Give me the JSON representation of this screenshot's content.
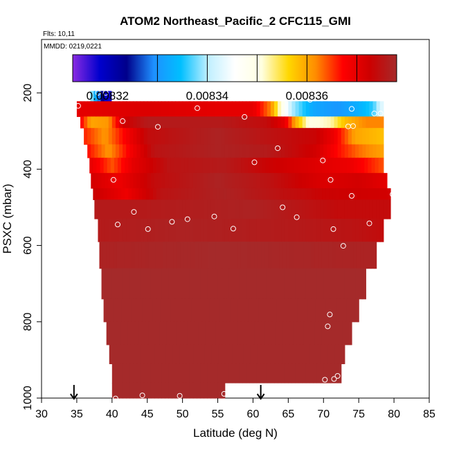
{
  "chart_data": {
    "type": "heatmap",
    "title": "ATOM2 Northeast_Pacific_2 CFC115_GMI",
    "flights_note": "Flts: 10,11",
    "mmdd_note": "MMDD: 0219,0221",
    "xlabel": "Latitude (deg N)",
    "ylabel": "PSXC (mbar)",
    "xlim": [
      30,
      85
    ],
    "ylim": [
      1000,
      60
    ],
    "x_ticks": [
      30,
      35,
      40,
      45,
      50,
      55,
      60,
      65,
      70,
      75,
      80,
      85
    ],
    "y_ticks": [
      200,
      400,
      600,
      800,
      1000
    ],
    "colorbar": {
      "range": [
        0.008313,
        0.008378
      ],
      "tick_values": [
        0.00832,
        0.00834,
        0.00836
      ],
      "tick_labels": [
        "0.00832",
        "0.00834",
        "0.00836"
      ],
      "boundaries": [
        0.00833,
        0.00834,
        0.00835,
        0.00836,
        0.00837
      ],
      "colors": [
        "#8a2be2",
        "#0000cd",
        "#00008b",
        "#1e90ff",
        "#00bfff",
        "#bfefff",
        "#ffffff",
        "#ffffe0",
        "#ffd700",
        "#ff8c00",
        "#ff0000",
        "#cd0000",
        "#a52a2a"
      ]
    },
    "rows": [
      {
        "p0": 195,
        "p1": 222,
        "pts": [
          [
            36.4,
            0.00835
          ],
          [
            37.0,
            0.00834
          ],
          [
            37.6,
            0.008333
          ],
          [
            38.4,
            0.008326
          ],
          [
            39.2,
            0.008318
          ],
          [
            39.9,
            0.008318
          ]
        ]
      },
      {
        "p0": 222,
        "p1": 262,
        "pts": [
          [
            35.0,
            0.00837
          ],
          [
            45.0,
            0.008371
          ],
          [
            55.0,
            0.00837
          ],
          [
            60.0,
            0.00837
          ],
          [
            62.5,
            0.008362
          ],
          [
            64.0,
            0.00835
          ],
          [
            65.5,
            0.00834
          ],
          [
            67.0,
            0.008336
          ],
          [
            68.5,
            0.008332
          ],
          [
            72.0,
            0.00833
          ],
          [
            75.0,
            0.008333
          ],
          [
            77.0,
            0.008336
          ],
          [
            78.5,
            0.008344
          ]
        ]
      },
      {
        "p0": 262,
        "p1": 292,
        "pts": [
          [
            35.5,
            0.008368
          ],
          [
            37.0,
            0.00836
          ],
          [
            39.5,
            0.008361
          ],
          [
            41.5,
            0.008372
          ],
          [
            45.0,
            0.008376
          ],
          [
            55.0,
            0.008376
          ],
          [
            62.0,
            0.008374
          ],
          [
            64.5,
            0.00837
          ],
          [
            66.0,
            0.00836
          ],
          [
            68.0,
            0.00835
          ],
          [
            71.0,
            0.008352
          ],
          [
            73.0,
            0.008358
          ],
          [
            76.0,
            0.008362
          ],
          [
            78.5,
            0.008362
          ]
        ]
      },
      {
        "p0": 292,
        "p1": 335,
        "pts": [
          [
            36.0,
            0.008366
          ],
          [
            39.0,
            0.008361
          ],
          [
            42.0,
            0.008368
          ],
          [
            45.0,
            0.008374
          ],
          [
            55.0,
            0.008377
          ],
          [
            62.0,
            0.008375
          ],
          [
            69.0,
            0.008373
          ],
          [
            71.5,
            0.008369
          ],
          [
            74.5,
            0.00836
          ],
          [
            78.5,
            0.008358
          ]
        ]
      },
      {
        "p0": 335,
        "p1": 370,
        "pts": [
          [
            36.5,
            0.008367
          ],
          [
            39.5,
            0.008361
          ],
          [
            43.0,
            0.008369
          ],
          [
            46.0,
            0.008375
          ],
          [
            55.0,
            0.008377
          ],
          [
            62.0,
            0.008376
          ],
          [
            69.0,
            0.008372
          ],
          [
            72.0,
            0.008367
          ],
          [
            75.0,
            0.008363
          ],
          [
            78.5,
            0.00836
          ]
        ]
      },
      {
        "p0": 370,
        "p1": 410,
        "pts": [
          [
            36.8,
            0.00837
          ],
          [
            40.0,
            0.008364
          ],
          [
            43.0,
            0.00837
          ],
          [
            48.0,
            0.008375
          ],
          [
            56.0,
            0.008376
          ],
          [
            62.0,
            0.008373
          ],
          [
            68.0,
            0.008371
          ],
          [
            74.0,
            0.008369
          ],
          [
            78.5,
            0.008364
          ]
        ]
      },
      {
        "p0": 410,
        "p1": 450,
        "pts": [
          [
            37.0,
            0.008372
          ],
          [
            41.0,
            0.008369
          ],
          [
            46.0,
            0.008374
          ],
          [
            55.0,
            0.008377
          ],
          [
            62.0,
            0.008375
          ],
          [
            70.0,
            0.008371
          ],
          [
            75.0,
            0.008372
          ],
          [
            79.0,
            0.00837
          ]
        ]
      },
      {
        "p0": 450,
        "p1": 480,
        "pts": [
          [
            37.3,
            0.008373
          ],
          [
            42.0,
            0.008369
          ],
          [
            47.0,
            0.008375
          ],
          [
            56.0,
            0.008377
          ],
          [
            70.0,
            0.008373
          ],
          [
            79.5,
            0.008372
          ]
        ]
      },
      {
        "p0": 480,
        "p1": 530,
        "pts": [
          [
            37.5,
            0.008376
          ],
          [
            45.0,
            0.008376
          ],
          [
            60.0,
            0.008377
          ],
          [
            72.0,
            0.008374
          ],
          [
            79.5,
            0.008374
          ]
        ]
      },
      {
        "p0": 530,
        "p1": 590,
        "pts": [
          [
            38.0,
            0.008376
          ],
          [
            50.0,
            0.008377
          ],
          [
            65.0,
            0.008376
          ],
          [
            75.0,
            0.008375
          ],
          [
            78.5,
            0.008374
          ]
        ]
      },
      {
        "p0": 590,
        "p1": 660,
        "pts": [
          [
            38.2,
            0.008377
          ],
          [
            55.0,
            0.008378
          ],
          [
            77.5,
            0.008377
          ]
        ]
      },
      {
        "p0": 660,
        "p1": 740,
        "pts": [
          [
            38.5,
            0.008378
          ],
          [
            76.0,
            0.008378
          ]
        ]
      },
      {
        "p0": 740,
        "p1": 800,
        "pts": [
          [
            38.8,
            0.008378
          ],
          [
            75.0,
            0.008378
          ]
        ]
      },
      {
        "p0": 800,
        "p1": 860,
        "pts": [
          [
            39.2,
            0.008378
          ],
          [
            74.0,
            0.008378
          ]
        ]
      },
      {
        "p0": 860,
        "p1": 910,
        "pts": [
          [
            39.6,
            0.008378
          ],
          [
            73.0,
            0.008378
          ]
        ]
      },
      {
        "p0": 910,
        "p1": 960,
        "pts": [
          [
            40.0,
            0.008378
          ],
          [
            72.5,
            0.008378
          ]
        ]
      },
      {
        "p0": 960,
        "p1": 1000,
        "pts": [
          [
            40.0,
            0.008378
          ],
          [
            56.0,
            0.008378
          ]
        ]
      }
    ],
    "samples": [
      [
        38.0,
        200
      ],
      [
        39.1,
        200
      ],
      [
        35.2,
        234
      ],
      [
        52.1,
        240
      ],
      [
        68.1,
        218
      ],
      [
        74.0,
        242
      ],
      [
        77.2,
        254
      ],
      [
        78.1,
        254
      ],
      [
        41.5,
        274
      ],
      [
        46.5,
        289
      ],
      [
        58.8,
        263
      ],
      [
        73.5,
        288
      ],
      [
        74.2,
        287
      ],
      [
        63.5,
        345
      ],
      [
        69.9,
        377
      ],
      [
        60.2,
        382
      ],
      [
        40.2,
        428
      ],
      [
        71.0,
        428
      ],
      [
        74.0,
        470
      ],
      [
        79.8,
        466
      ],
      [
        43.1,
        512
      ],
      [
        64.2,
        500
      ],
      [
        66.2,
        526
      ],
      [
        50.7,
        531
      ],
      [
        54.5,
        524
      ],
      [
        48.5,
        538
      ],
      [
        40.8,
        545
      ],
      [
        45.1,
        557
      ],
      [
        57.2,
        556
      ],
      [
        71.4,
        557
      ],
      [
        76.5,
        542
      ],
      [
        72.8,
        601
      ],
      [
        70.9,
        781
      ],
      [
        70.6,
        812
      ],
      [
        70.2,
        952
      ],
      [
        71.5,
        950
      ],
      [
        72.0,
        942
      ],
      [
        55.9,
        989
      ],
      [
        44.3,
        993
      ],
      [
        49.6,
        994
      ],
      [
        40.5,
        1001
      ]
    ],
    "flight_markers": [
      34.6,
      61.1
    ]
  }
}
